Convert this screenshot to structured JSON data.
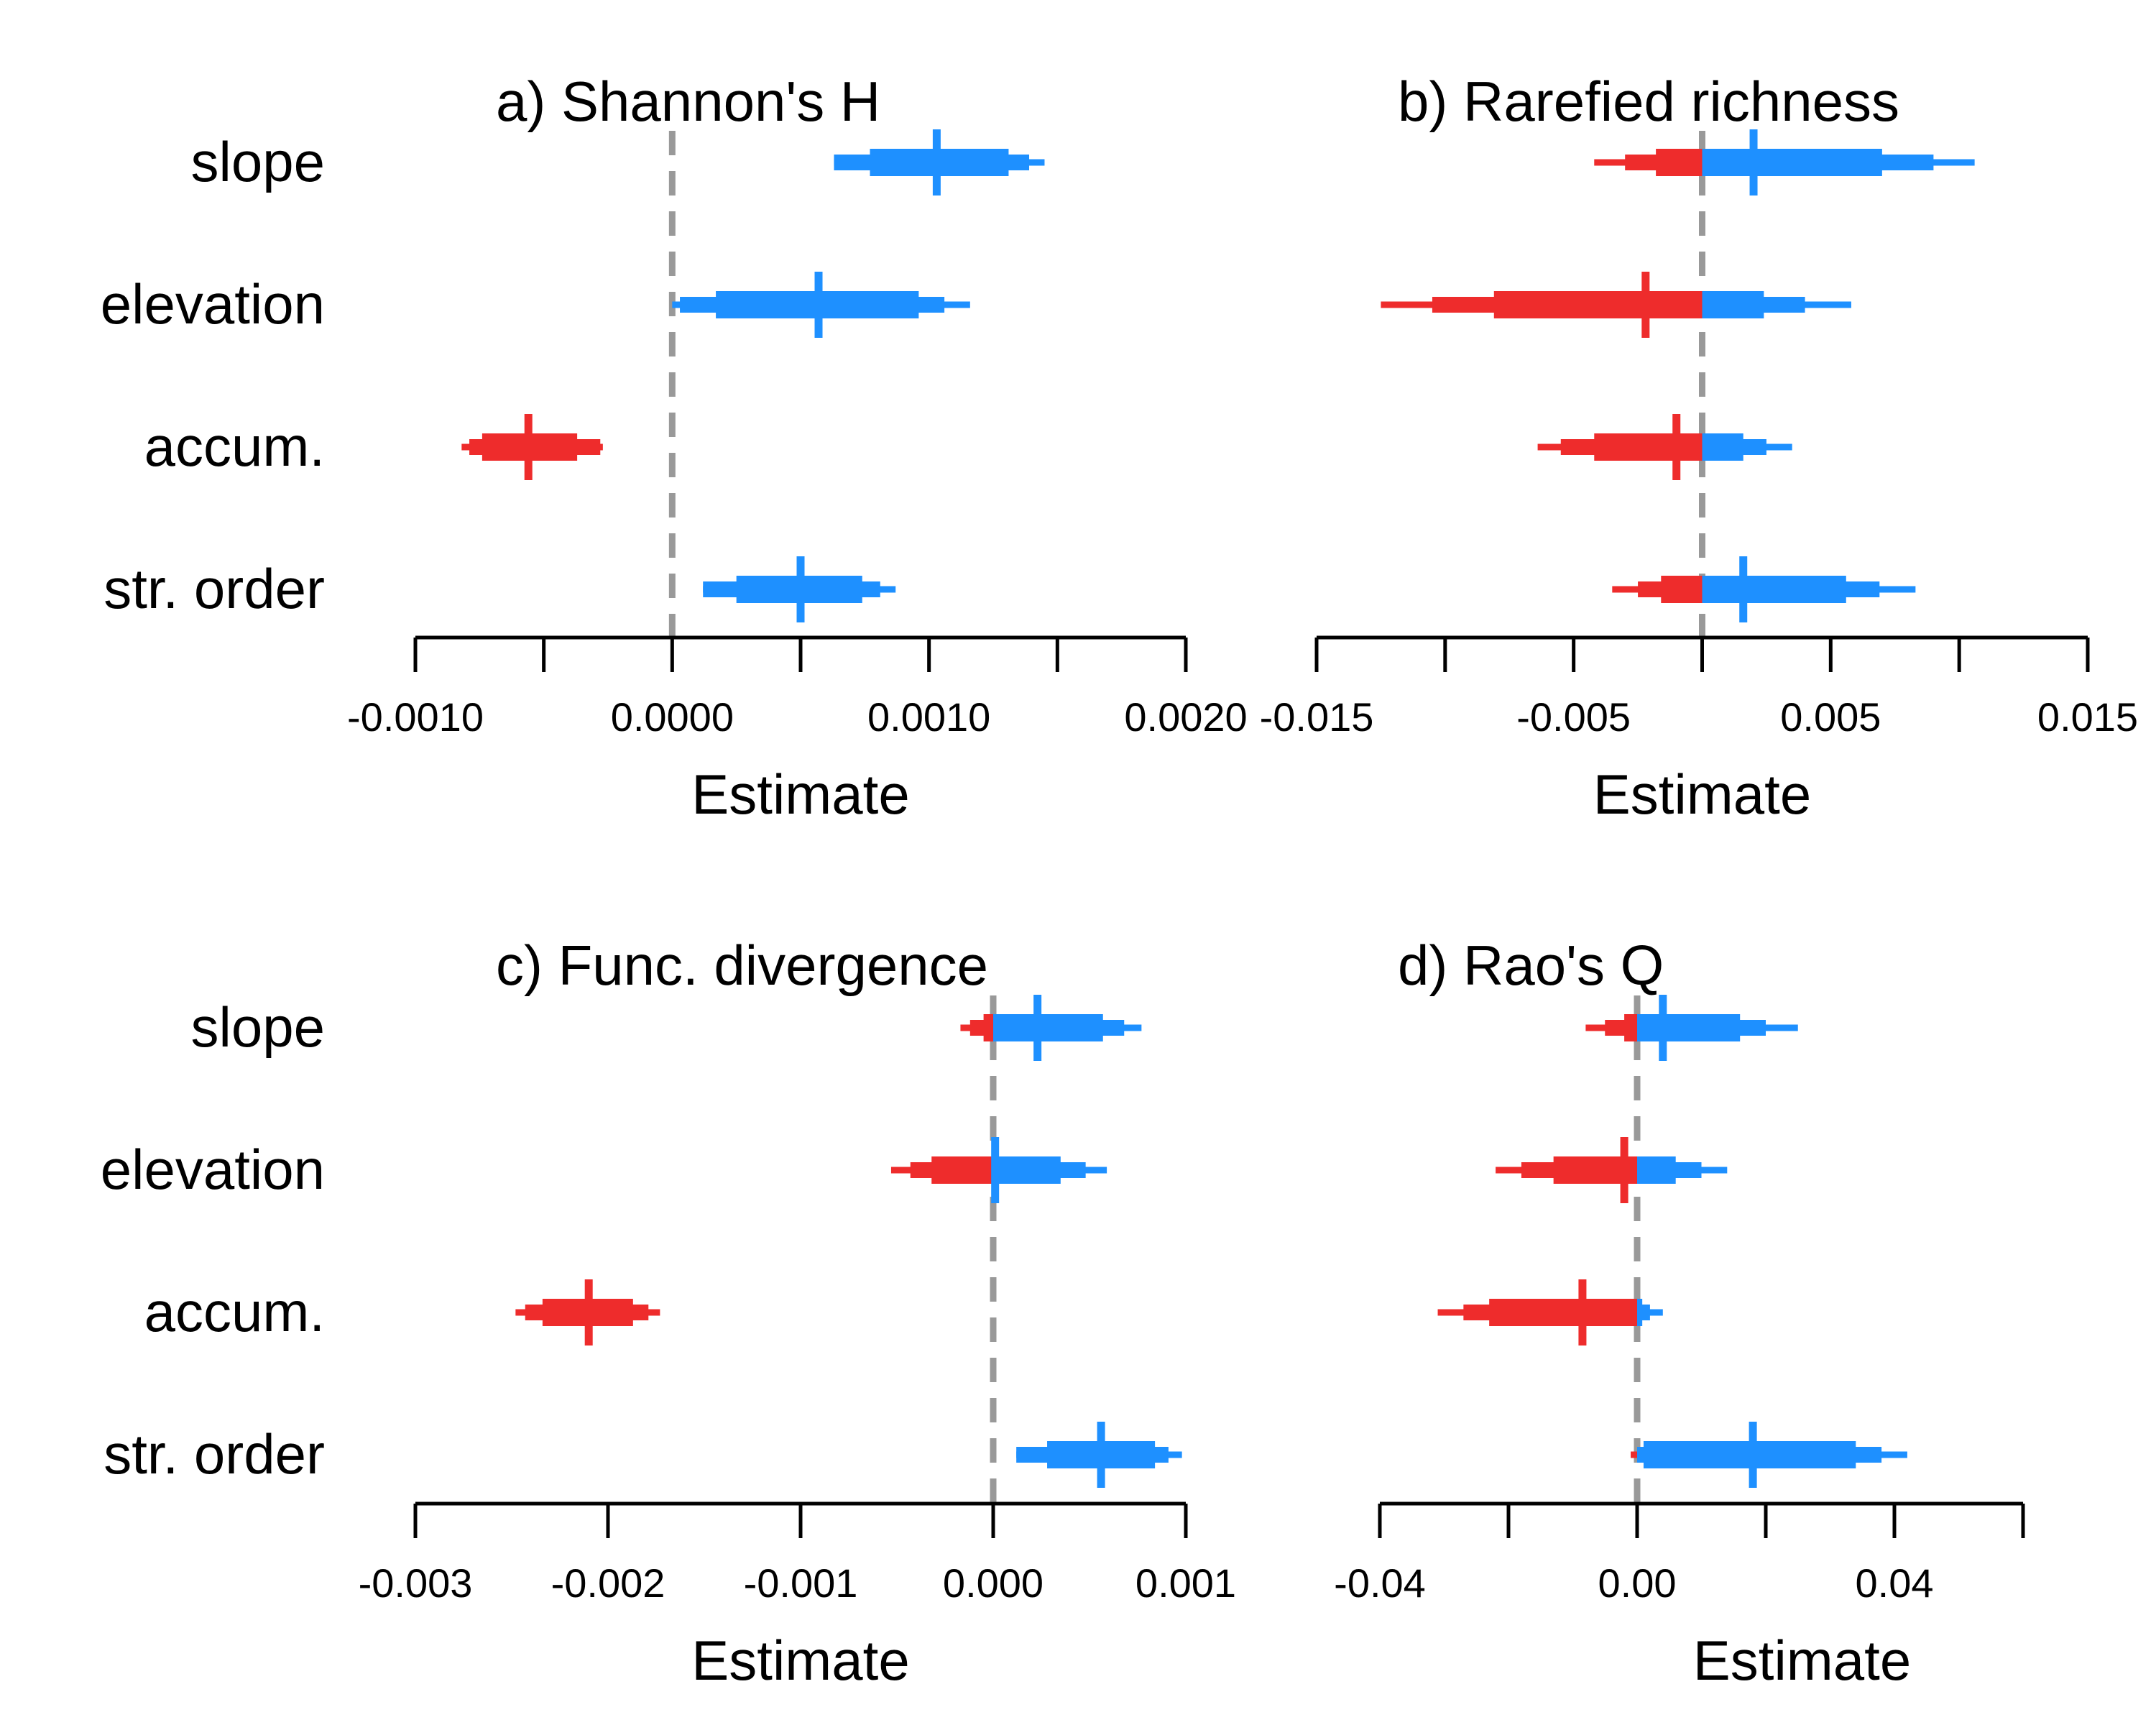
{
  "colors": {
    "positive": "#1E90FF",
    "negative": "#EE2C2C",
    "zero_line": "#999999",
    "axis": "#000000"
  },
  "chart_data": [
    {
      "type": "interval",
      "title": "a) Shannon's H",
      "xlabel": "Estimate",
      "xlim": [
        -0.001,
        0.002
      ],
      "x_ticks": [
        -0.001,
        -0.0005,
        0,
        0.0005,
        0.001,
        0.0015,
        0.002
      ],
      "x_tick_labels": [
        "-0.0010",
        "",
        "0.0000",
        "",
        "0.0010",
        "",
        "0.0020"
      ],
      "rows": [
        {
          "label": "slope",
          "median": 0.00103,
          "ci50": [
            0.00077,
            0.00131
          ],
          "ci80": [
            0.00063,
            0.00139
          ],
          "ci95": [
            0.00063,
            0.00145
          ]
        },
        {
          "label": "elevation",
          "median": 0.00057,
          "ci50": [
            0.00017,
            0.00096
          ],
          "ci80": [
            3e-05,
            0.00106
          ],
          "ci95": [
            0.0,
            0.00116
          ]
        },
        {
          "label": "accum.",
          "median": -0.00056,
          "ci50": [
            -0.00074,
            -0.00037
          ],
          "ci80": [
            -0.00079,
            -0.00028
          ],
          "ci95": [
            -0.00082,
            -0.00027
          ]
        },
        {
          "label": "str. order",
          "median": 0.0005,
          "ci50": [
            0.00025,
            0.00074
          ],
          "ci80": [
            0.00012,
            0.00081
          ],
          "ci95": [
            0.00012,
            0.00087
          ]
        }
      ]
    },
    {
      "type": "interval",
      "title": "b) Rarefied richness",
      "xlabel": "Estimate",
      "xlim": [
        -0.015,
        0.015
      ],
      "x_ticks": [
        -0.015,
        -0.01,
        -0.005,
        0,
        0.005,
        0.01,
        0.015
      ],
      "x_tick_labels": [
        "-0.015",
        "",
        "-0.005",
        "",
        "0.005",
        "",
        "0.015"
      ],
      "rows": [
        {
          "label": "slope",
          "median": 0.002,
          "ci50": [
            -0.0018,
            0.007
          ],
          "ci80": [
            -0.003,
            0.009
          ],
          "ci95": [
            -0.0042,
            0.0106
          ]
        },
        {
          "label": "elevation",
          "median": -0.0022,
          "ci50": [
            -0.0081,
            0.0024
          ],
          "ci80": [
            -0.0105,
            0.004
          ],
          "ci95": [
            -0.0125,
            0.0058
          ]
        },
        {
          "label": "accum.",
          "median": -0.001,
          "ci50": [
            -0.0042,
            0.0016
          ],
          "ci80": [
            -0.0055,
            0.0025
          ],
          "ci95": [
            -0.0064,
            0.0035
          ]
        },
        {
          "label": "str. order",
          "median": 0.0016,
          "ci50": [
            -0.0016,
            0.0056
          ],
          "ci80": [
            -0.0025,
            0.0069
          ],
          "ci95": [
            -0.0035,
            0.0083
          ]
        }
      ]
    },
    {
      "type": "interval",
      "title": "c) Func. divergence",
      "xlabel": "Estimate",
      "xlim": [
        -0.003,
        0.001
      ],
      "x_ticks": [
        -0.003,
        -0.002,
        -0.001,
        0,
        0.001
      ],
      "x_tick_labels": [
        "-0.003",
        "-0.002",
        "-0.001",
        "0.000",
        "0.001"
      ],
      "rows": [
        {
          "label": "slope",
          "median": 0.00023,
          "ci50": [
            -5e-05,
            0.00057
          ],
          "ci80": [
            -0.00012,
            0.00068
          ],
          "ci95": [
            -0.00017,
            0.00077
          ]
        },
        {
          "label": "elevation",
          "median": 1e-05,
          "ci50": [
            -0.00032,
            0.00035
          ],
          "ci80": [
            -0.00043,
            0.00048
          ],
          "ci95": [
            -0.00053,
            0.00059
          ]
        },
        {
          "label": "accum.",
          "median": -0.0021,
          "ci50": [
            -0.00234,
            -0.00187
          ],
          "ci80": [
            -0.00243,
            -0.00179
          ],
          "ci95": [
            -0.00248,
            -0.00173
          ]
        },
        {
          "label": "str. order",
          "median": 0.00056,
          "ci50": [
            0.00028,
            0.00084
          ],
          "ci80": [
            0.00012,
            0.00091
          ],
          "ci95": [
            0.00012,
            0.00098
          ]
        }
      ]
    },
    {
      "type": "interval",
      "title": "d) Rao's Q",
      "xlabel": "Estimate",
      "xlim": [
        -0.04,
        0.06
      ],
      "x_ticks": [
        -0.04,
        -0.02,
        0,
        0.02,
        0.04,
        0.06
      ],
      "x_tick_labels": [
        "-0.04",
        "",
        "0.00",
        "",
        "0.04",
        ""
      ],
      "rows": [
        {
          "label": "slope",
          "median": 0.004,
          "ci50": [
            -0.002,
            0.016
          ],
          "ci80": [
            -0.005,
            0.02
          ],
          "ci95": [
            -0.008,
            0.025
          ]
        },
        {
          "label": "elevation",
          "median": -0.002,
          "ci50": [
            -0.013,
            0.006
          ],
          "ci80": [
            -0.018,
            0.01
          ],
          "ci95": [
            -0.022,
            0.014
          ]
        },
        {
          "label": "accum.",
          "median": -0.0085,
          "ci50": [
            -0.023,
            0.0008
          ],
          "ci80": [
            -0.027,
            0.002
          ],
          "ci95": [
            -0.031,
            0.004
          ]
        },
        {
          "label": "str. order",
          "median": 0.018,
          "ci50": [
            0.001,
            0.034
          ],
          "ci80": [
            0.0,
            0.038
          ],
          "ci95": [
            -0.001,
            0.042
          ]
        }
      ]
    }
  ]
}
